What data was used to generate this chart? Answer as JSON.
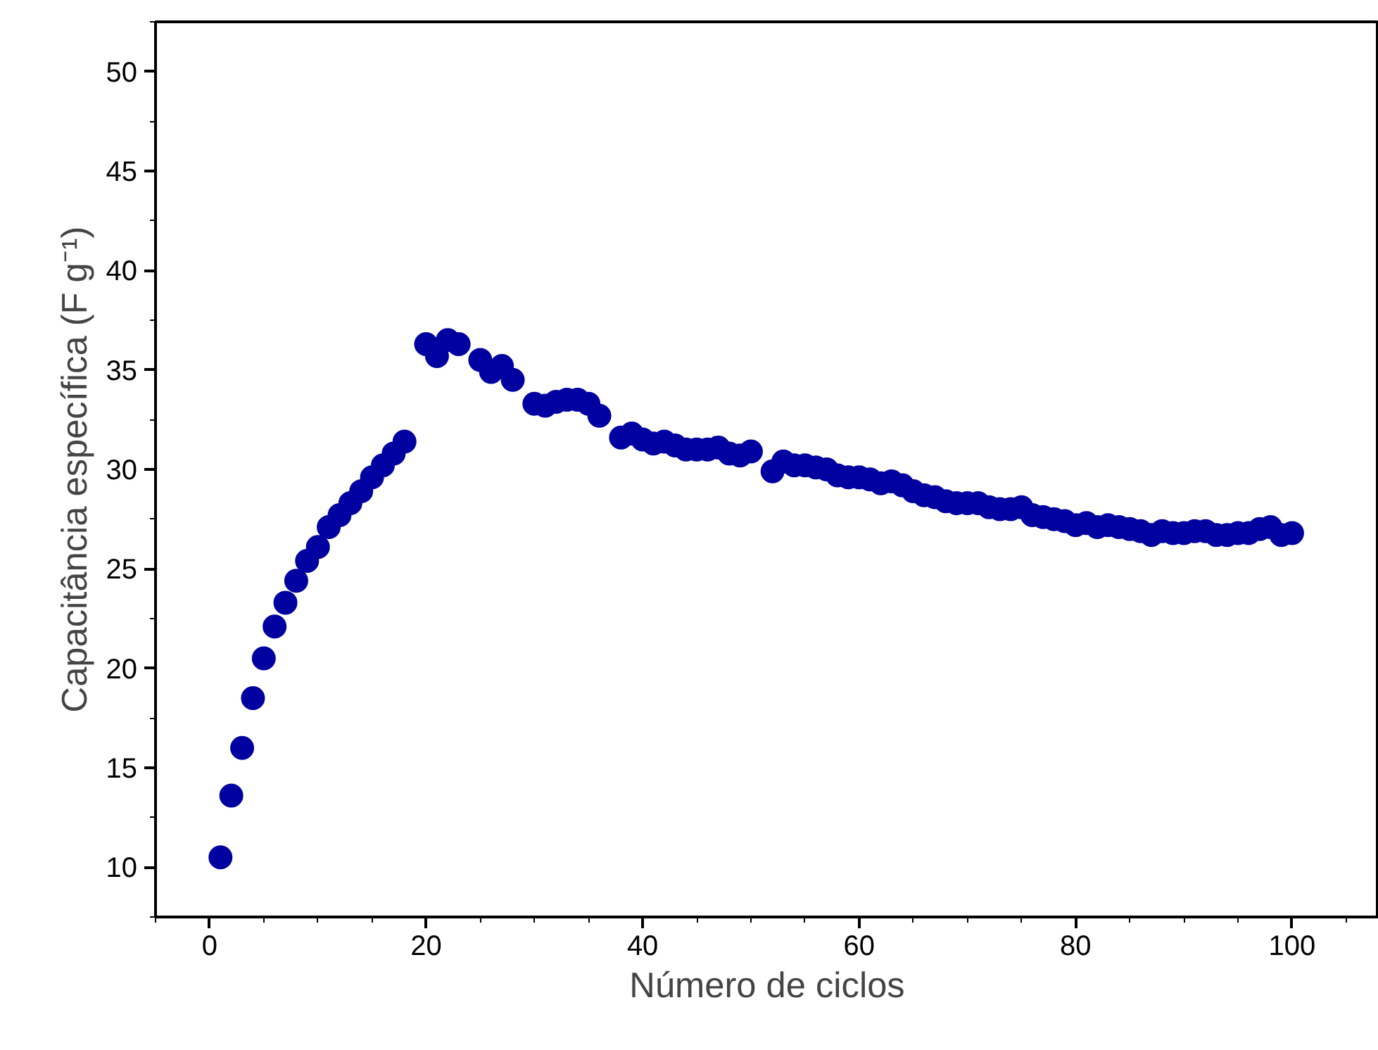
{
  "chart_data": {
    "type": "scatter",
    "xlabel": "Número de ciclos",
    "ylabel": "Capacitância específica (F g⁻¹)",
    "xlim": [
      -5,
      108
    ],
    "ylim": [
      7.5,
      52.5
    ],
    "xticks": [
      0,
      20,
      40,
      60,
      80,
      100
    ],
    "yticks": [
      10,
      15,
      20,
      25,
      30,
      35,
      40,
      45,
      50
    ],
    "grid": false,
    "marker": "circle",
    "series": [
      {
        "color": "#0000a0",
        "x": [
          1,
          2,
          3,
          4,
          5,
          6,
          7,
          8,
          9,
          10,
          11,
          12,
          13,
          14,
          15,
          16,
          17,
          18,
          20,
          21,
          22,
          23,
          25,
          26,
          27,
          28,
          30,
          31,
          32,
          33,
          34,
          35,
          36,
          38,
          39,
          40,
          41,
          42,
          43,
          44,
          45,
          46,
          47,
          48,
          49,
          50,
          52,
          53,
          54,
          55,
          56,
          57,
          58,
          59,
          60,
          61,
          62,
          63,
          64,
          65,
          66,
          67,
          68,
          69,
          70,
          71,
          72,
          73,
          74,
          75,
          76,
          77,
          78,
          79,
          80,
          81,
          82,
          83,
          84,
          85,
          86,
          87,
          88,
          89,
          90,
          91,
          92,
          93,
          94,
          95,
          96,
          97,
          98,
          99,
          100
        ],
        "values": [
          10.5,
          13.6,
          16.0,
          18.5,
          20.5,
          22.1,
          23.3,
          24.4,
          25.4,
          26.1,
          27.1,
          27.7,
          28.3,
          28.9,
          29.6,
          30.2,
          30.8,
          31.4,
          36.3,
          35.7,
          36.5,
          36.3,
          35.5,
          34.9,
          35.2,
          34.5,
          33.3,
          33.2,
          33.4,
          33.5,
          33.5,
          33.3,
          32.7,
          31.6,
          31.8,
          31.5,
          31.3,
          31.4,
          31.2,
          31.0,
          31.0,
          31.0,
          31.1,
          30.8,
          30.7,
          30.9,
          29.9,
          30.4,
          30.2,
          30.2,
          30.1,
          30.0,
          29.7,
          29.6,
          29.6,
          29.5,
          29.3,
          29.4,
          29.2,
          28.9,
          28.7,
          28.6,
          28.4,
          28.3,
          28.3,
          28.3,
          28.1,
          28.0,
          28.0,
          28.1,
          27.7,
          27.6,
          27.5,
          27.4,
          27.2,
          27.3,
          27.1,
          27.2,
          27.1,
          27.0,
          26.9,
          26.7,
          26.9,
          26.8,
          26.8,
          26.9,
          26.9,
          26.7,
          26.7,
          26.8,
          26.8,
          27.0,
          27.1,
          26.7,
          26.8
        ]
      }
    ]
  }
}
